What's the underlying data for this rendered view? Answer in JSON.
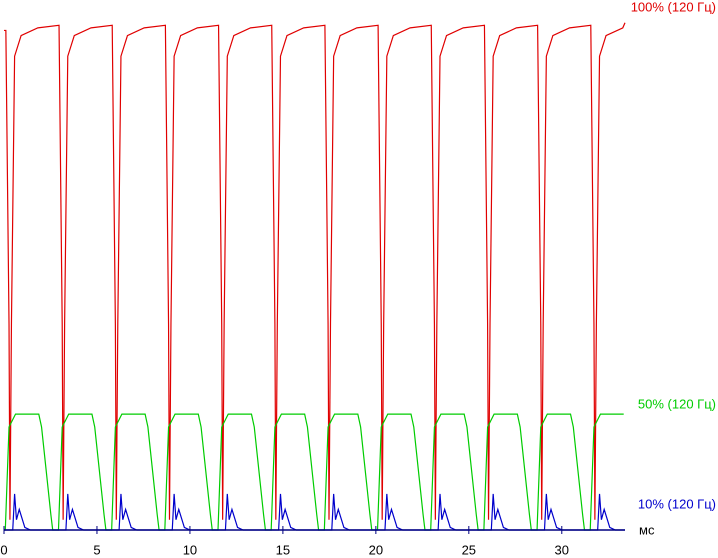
{
  "chart_data": {
    "type": "line",
    "x_label": "мс",
    "xlim": [
      0,
      33.4
    ],
    "xticks": [
      0,
      5,
      10,
      15,
      20,
      25,
      30
    ],
    "ylim": [
      0,
      100
    ],
    "series": [
      {
        "name": "100% (120 Гц)",
        "color": "#e00000",
        "x": [
          0,
          0.1,
          0.27,
          0.32,
          0.4,
          0.57,
          0.92,
          1.82,
          2.96,
          3.13,
          3.18,
          3.26,
          3.43,
          3.78,
          4.68,
          5.82,
          5.99,
          6.04,
          6.12,
          6.29,
          6.64,
          7.54,
          8.68,
          8.85,
          8.9,
          8.98,
          9.15,
          9.5,
          10.4,
          11.54,
          11.71,
          11.76,
          11.84,
          12.01,
          12.36,
          13.26,
          14.4,
          14.57,
          14.62,
          14.7,
          14.87,
          15.22,
          16.12,
          17.26,
          17.43,
          17.48,
          17.56,
          17.73,
          18.08,
          18.98,
          20.12,
          20.29,
          20.34,
          20.42,
          20.59,
          20.94,
          21.84,
          22.98,
          23.15,
          23.2,
          23.28,
          23.45,
          23.8,
          24.7,
          25.84,
          26.01,
          26.06,
          26.14,
          26.31,
          26.66,
          27.56,
          28.7,
          28.87,
          28.92,
          29.0,
          29.17,
          29.52,
          30.42,
          31.56,
          31.73,
          31.78,
          31.86,
          32.03,
          32.38,
          33.28,
          33.4
        ],
        "values": [
          97,
          97,
          40,
          2,
          40,
          92,
          96,
          97.5,
          98,
          40,
          2,
          40,
          92,
          96,
          97.5,
          98,
          40,
          2,
          40,
          92,
          96,
          97.5,
          98,
          40,
          2,
          40,
          92,
          96,
          97.5,
          98,
          40,
          2,
          40,
          92,
          96,
          97.5,
          98,
          40,
          2,
          40,
          92,
          96,
          97.5,
          98,
          40,
          2,
          40,
          92,
          96,
          97.5,
          98,
          40,
          2,
          40,
          92,
          96,
          97.5,
          98,
          40,
          2,
          40,
          92,
          96,
          97.5,
          98,
          40,
          2,
          40,
          92,
          96,
          97.5,
          98,
          40,
          2,
          40,
          92,
          96,
          97.5,
          98,
          40,
          2,
          40,
          92,
          96,
          97.5,
          98.5
        ]
      },
      {
        "name": "50% (120 Гц)",
        "color": "#00cc00",
        "x": [
          0,
          0.07,
          0.27,
          0.62,
          1.87,
          2.02,
          2.52,
          2.62,
          2.93,
          3.13,
          3.48,
          4.73,
          4.88,
          5.38,
          5.48,
          5.79,
          5.99,
          6.34,
          7.59,
          7.74,
          8.24,
          8.34,
          8.65,
          8.85,
          9.2,
          10.45,
          10.6,
          11.1,
          11.2,
          11.51,
          11.71,
          12.06,
          13.31,
          13.46,
          13.96,
          14.06,
          14.37,
          14.57,
          14.92,
          16.17,
          16.32,
          16.82,
          16.92,
          17.23,
          17.43,
          17.78,
          19.03,
          19.18,
          19.68,
          19.78,
          20.09,
          20.29,
          20.64,
          21.89,
          22.04,
          22.54,
          22.64,
          22.95,
          23.15,
          23.5,
          24.75,
          24.9,
          25.4,
          25.5,
          25.81,
          26.01,
          26.36,
          27.61,
          27.76,
          28.26,
          28.36,
          28.67,
          28.87,
          29.22,
          30.47,
          30.62,
          31.12,
          31.22,
          31.53,
          31.73,
          32.08,
          33.33
        ],
        "values": [
          0,
          0,
          20,
          22.5,
          22.5,
          20,
          3,
          0,
          0,
          20,
          22.5,
          22.5,
          20,
          3,
          0,
          0,
          20,
          22.5,
          22.5,
          20,
          3,
          0,
          0,
          20,
          22.5,
          22.5,
          20,
          3,
          0,
          0,
          20,
          22.5,
          22.5,
          20,
          3,
          0,
          0,
          20,
          22.5,
          22.5,
          20,
          3,
          0,
          0,
          20,
          22.5,
          22.5,
          20,
          3,
          0,
          0,
          20,
          22.5,
          22.5,
          20,
          3,
          0,
          0,
          20,
          22.5,
          22.5,
          20,
          3,
          0,
          0,
          20,
          22.5,
          22.5,
          20,
          3,
          0,
          0,
          20,
          22.5,
          22.5,
          20,
          3,
          0,
          0,
          20,
          22.5,
          22.5
        ]
      },
      {
        "name": "10% (120 Гц)",
        "color": "#0000cc",
        "x": [
          0,
          0.47,
          0.57,
          0.67,
          0.82,
          1.12,
          1.42,
          3.33,
          3.43,
          3.53,
          3.68,
          3.98,
          4.28,
          6.19,
          6.29,
          6.39,
          6.54,
          6.84,
          7.14,
          9.05,
          9.15,
          9.25,
          9.4,
          9.7,
          10.0,
          11.91,
          12.01,
          12.11,
          12.26,
          12.56,
          12.86,
          14.77,
          14.87,
          14.97,
          15.12,
          15.42,
          15.72,
          17.63,
          17.73,
          17.83,
          17.98,
          18.28,
          18.58,
          20.49,
          20.59,
          20.69,
          20.84,
          21.14,
          21.44,
          23.35,
          23.45,
          23.55,
          23.7,
          24.0,
          24.3,
          26.21,
          26.31,
          26.41,
          26.56,
          26.86,
          27.16,
          29.07,
          29.17,
          29.27,
          29.42,
          29.72,
          30.02,
          31.93,
          32.03,
          32.13,
          32.28,
          32.58,
          32.88,
          33.4
        ],
        "values": [
          0,
          0,
          7,
          2,
          4,
          0.5,
          0,
          0,
          7,
          2,
          4,
          0.5,
          0,
          0,
          7,
          2,
          4,
          0.5,
          0,
          0,
          7,
          2,
          4,
          0.5,
          0,
          0,
          7,
          2,
          4,
          0.5,
          0,
          0,
          7,
          2,
          4,
          0.5,
          0,
          0,
          7,
          2,
          4,
          0.5,
          0,
          0,
          7,
          2,
          4,
          0.5,
          0,
          0,
          7,
          2,
          4,
          0.5,
          0,
          0,
          7,
          2,
          4,
          0.5,
          0,
          0,
          7,
          2,
          4,
          0.5,
          0,
          0,
          7,
          2,
          4,
          0.5,
          0,
          0
        ]
      }
    ]
  }
}
